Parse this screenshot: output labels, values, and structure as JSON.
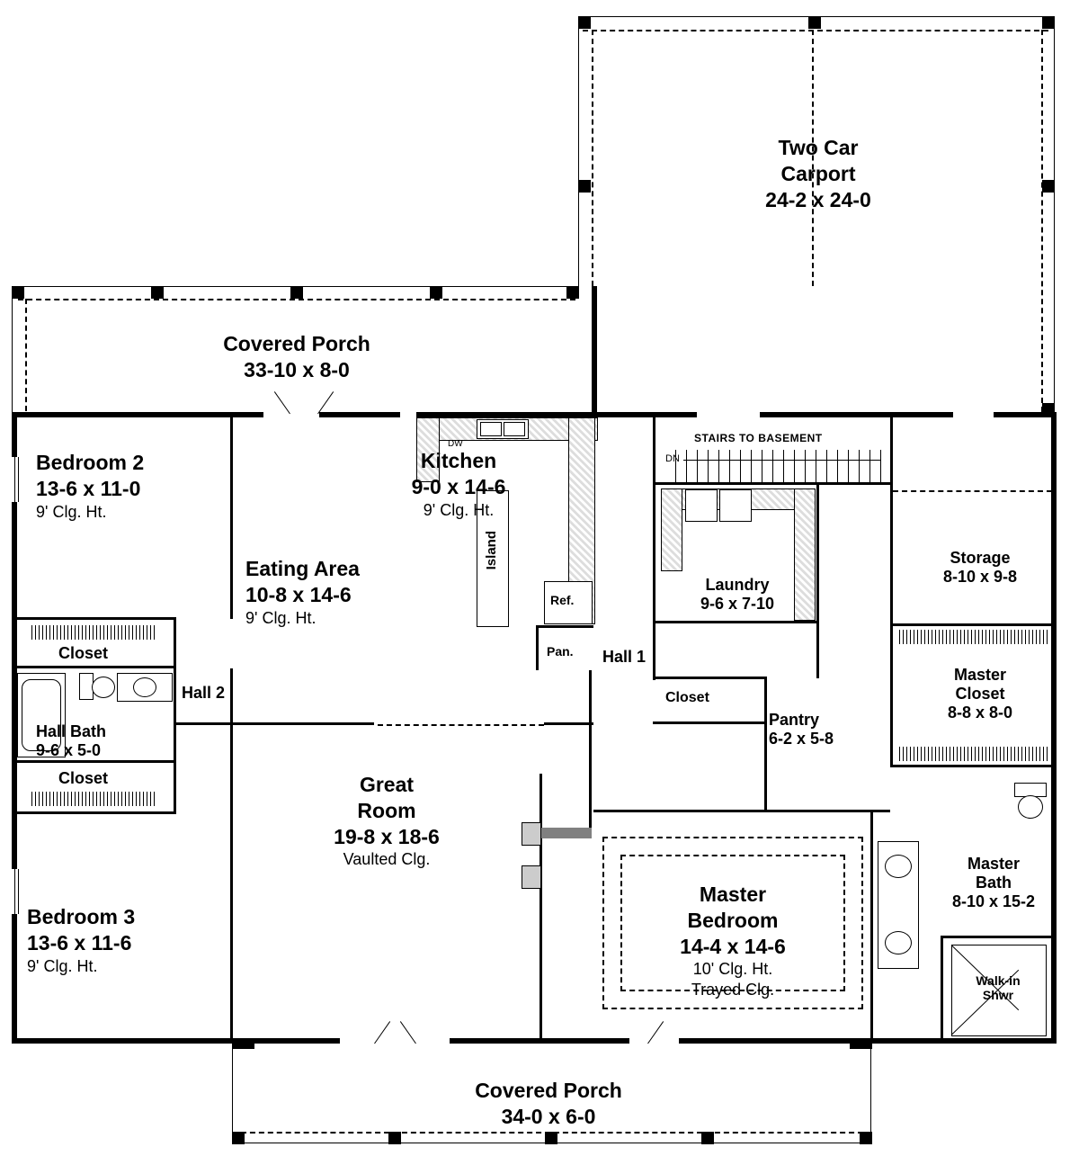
{
  "colors": {
    "wall": "#000000",
    "bg": "#ffffff",
    "counter_fill": "#dddddd"
  },
  "wall_thickness": {
    "exterior": 6,
    "interior": 3
  },
  "post_size": 14,
  "rooms": {
    "carport": {
      "name": "Two Car\nCarport",
      "dims": "24-2 x 24-0"
    },
    "porch_rear": {
      "name": "Covered Porch",
      "dims": "33-10 x 8-0"
    },
    "porch_front": {
      "name": "Covered Porch",
      "dims": "34-0 x 6-0"
    },
    "bedroom2": {
      "name": "Bedroom 2",
      "dims": "13-6 x 11-0",
      "note": "9' Clg. Ht."
    },
    "kitchen": {
      "name": "Kitchen",
      "dims": "9-0 x 14-6",
      "note": "9' Clg. Ht."
    },
    "eating": {
      "name": "Eating Area",
      "dims": "10-8 x 14-6",
      "note": "9' Clg. Ht."
    },
    "laundry": {
      "name": "Laundry",
      "dims": "9-6 x 7-10"
    },
    "storage": {
      "name": "Storage",
      "dims": "8-10 x 9-8"
    },
    "great": {
      "name": "Great\nRoom",
      "dims": "19-8 x 18-6",
      "note": "Vaulted Clg."
    },
    "master": {
      "name": "Master\nBedroom",
      "dims": "14-4 x 14-6",
      "note": "10' Clg. Ht.\nTrayed Clg."
    },
    "masterbath": {
      "name": "Master\nBath",
      "dims": "8-10 x 15-2"
    },
    "mastercloset": {
      "name": "Master\nCloset",
      "dims": "8-8 x 8-0"
    },
    "hallbath": {
      "name": "Hall Bath",
      "dims": "9-6 x 5-0"
    },
    "bedroom3": {
      "name": "Bedroom 3",
      "dims": "13-6 x 11-6",
      "note": "9' Clg. Ht."
    },
    "pantry": {
      "name": "Pantry",
      "dims": "6-2 x 5-8"
    },
    "shwr": {
      "name": "Walk-in\nShwr"
    }
  },
  "labels": {
    "closet1": "Closet",
    "closet2": "Closet",
    "closet3": "Closet",
    "hall1": "Hall 1",
    "hall2": "Hall 2",
    "island": "Island",
    "ref": "Ref.",
    "pan": "Pan.",
    "stairs": "STAIRS TO BASEMENT",
    "dn": "DN",
    "dw": "DW"
  },
  "fonts": {
    "room_name_size": 23,
    "room_name_weight": 700,
    "room_note_size": 18,
    "room_note_weight": 400,
    "small_label_size": 18,
    "tiny_label_size": 14
  }
}
